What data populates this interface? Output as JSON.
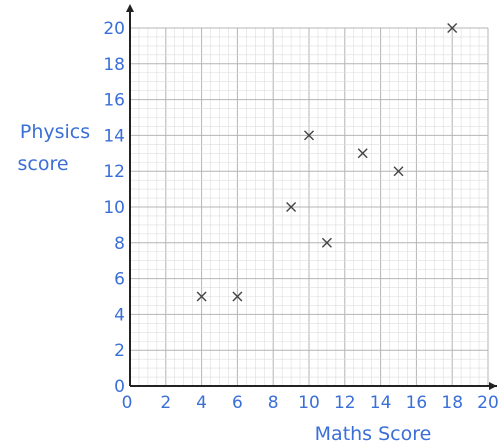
{
  "chart_data": {
    "type": "scatter",
    "title": "",
    "xlabel": "Maths Score",
    "ylabel": [
      "Physics",
      "score"
    ],
    "xlim": [
      0,
      20
    ],
    "ylim": [
      0,
      20
    ],
    "xticks": [
      0,
      2,
      4,
      6,
      8,
      10,
      12,
      14,
      16,
      18,
      20
    ],
    "yticks": [
      0,
      2,
      4,
      6,
      8,
      10,
      12,
      14,
      16,
      18,
      20
    ],
    "grid": true,
    "marker": "x",
    "label_color": "#3a6fd8",
    "grid_color": "#c8c8c8",
    "points": [
      {
        "x": 4,
        "y": 5
      },
      {
        "x": 6,
        "y": 5
      },
      {
        "x": 9,
        "y": 10
      },
      {
        "x": 10,
        "y": 14
      },
      {
        "x": 11,
        "y": 8
      },
      {
        "x": 13,
        "y": 13
      },
      {
        "x": 15,
        "y": 12
      },
      {
        "x": 18,
        "y": 20
      }
    ]
  }
}
